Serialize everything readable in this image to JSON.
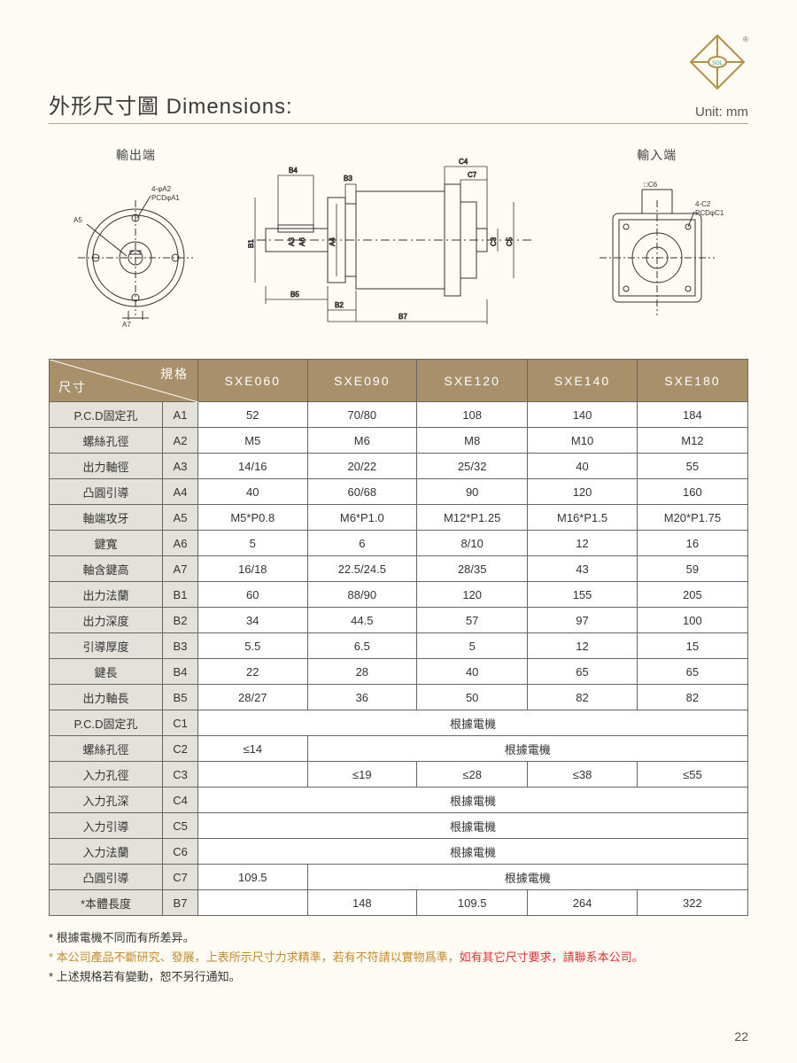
{
  "header": {
    "title": "外形尺寸圖 Dimensions:",
    "unit": "Unit: mm"
  },
  "drawings": {
    "output_label": "輸出端",
    "input_label": "輸入端",
    "labels": {
      "pcd_a1": "PCDφA1",
      "holes_a2": "4-φA2",
      "a5": "A5",
      "a7": "A7",
      "b1": "B1",
      "b2": "B2",
      "b3": "B3",
      "b4": "B4",
      "b5": "B5",
      "b7": "B7",
      "a3": "A3",
      "a4": "A4",
      "a6": "A6",
      "c3": "C3",
      "c4": "C4",
      "c5": "C5",
      "c7": "C7",
      "pcd_c1": "PCDφC1",
      "holes_c2": "4-C2",
      "c6": "□C6"
    }
  },
  "table": {
    "corner_top": "規格",
    "corner_bottom": "尺寸",
    "models": [
      "SXE060",
      "SXE090",
      "SXE120",
      "SXE140",
      "SXE180"
    ],
    "rows": [
      {
        "label": "P.C.D固定孔",
        "code": "A1",
        "vals": [
          "52",
          "70/80",
          "108",
          "140",
          "184"
        ]
      },
      {
        "label": "螺絲孔徑",
        "code": "A2",
        "vals": [
          "M5",
          "M6",
          "M8",
          "M10",
          "M12"
        ]
      },
      {
        "label": "出力軸徑",
        "code": "A3",
        "vals": [
          "14/16",
          "20/22",
          "25/32",
          "40",
          "55"
        ]
      },
      {
        "label": "凸圓引導",
        "code": "A4",
        "vals": [
          "40",
          "60/68",
          "90",
          "120",
          "160"
        ]
      },
      {
        "label": "軸端攻牙",
        "code": "A5",
        "vals": [
          "M5*P0.8",
          "M6*P1.0",
          "M12*P1.25",
          "M16*P1.5",
          "M20*P1.75"
        ]
      },
      {
        "label": "鍵寬",
        "code": "A6",
        "vals": [
          "5",
          "6",
          "8/10",
          "12",
          "16"
        ]
      },
      {
        "label": "軸含鍵高",
        "code": "A7",
        "vals": [
          "16/18",
          "22.5/24.5",
          "28/35",
          "43",
          "59"
        ]
      },
      {
        "label": "出力法蘭",
        "code": "B1",
        "vals": [
          "60",
          "88/90",
          "120",
          "155",
          "205"
        ]
      },
      {
        "label": "出力深度",
        "code": "B2",
        "vals": [
          "34",
          "44.5",
          "57",
          "97",
          "100"
        ]
      },
      {
        "label": "引導厚度",
        "code": "B3",
        "vals": [
          "5.5",
          "6.5",
          "5",
          "12",
          "15"
        ]
      },
      {
        "label": "鍵長",
        "code": "B4",
        "vals": [
          "22",
          "28",
          "40",
          "65",
          "65"
        ]
      },
      {
        "label": "出力軸長",
        "code": "B5",
        "vals": [
          "28/27",
          "36",
          "50",
          "82",
          "82"
        ]
      },
      {
        "label": "P.C.D固定孔",
        "code": "C1",
        "span": "根據電機"
      },
      {
        "label": "螺絲孔徑",
        "code": "C2",
        "vals": [
          "≤14"
        ],
        "span_after": "根據電機"
      },
      {
        "label": "入力孔徑",
        "code": "C3",
        "vals": [
          "",
          "≤19",
          "≤28",
          "≤38",
          "≤55"
        ]
      },
      {
        "label": "入力孔深",
        "code": "C4",
        "span": "根據電機"
      },
      {
        "label": "入力引導",
        "code": "C5",
        "span": "根據電機"
      },
      {
        "label": "入力法蘭",
        "code": "C6",
        "span": "根據電機"
      },
      {
        "label": "凸圓引導",
        "code": "C7",
        "vals": [
          "109.5"
        ],
        "span_after": "根據電機"
      },
      {
        "label": "*本體長度",
        "code": "B7",
        "vals": [
          "",
          "148",
          "109.5",
          "264",
          "322"
        ]
      }
    ]
  },
  "notes": {
    "n1": "* 根據電機不同而有所差异。",
    "n2a": "* 本公司產品不斷研究、發展，上表所示尺寸力求精準，若有不符請以實物爲準，",
    "n2b": "如有其它尺寸要求，請聯系本公司。",
    "n3": "* 上述規格若有變動，恕不另行通知。"
  },
  "page_number": "22",
  "colors": {
    "brand_tan": "#a8906b",
    "row_gray": "#e3e1da",
    "page_bg": "#fdfbf4",
    "note_orange": "#c58a2d",
    "note_red": "#d33"
  }
}
